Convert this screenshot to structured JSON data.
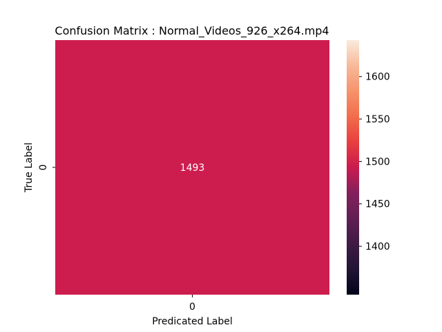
{
  "chart_data": {
    "type": "heatmap",
    "title": "Confusion Matrix : Normal_Videos_926_x264.mp4",
    "xlabel": "Predicated Label",
    "ylabel": "True Label",
    "x_categories": [
      "0"
    ],
    "y_categories": [
      "0"
    ],
    "values": [
      [
        1493
      ]
    ],
    "annotations": [
      [
        "1493"
      ]
    ],
    "cell_color": "#cd1d4e",
    "annotation_color": "#ffffff",
    "colorbar": {
      "range": [
        1343,
        1643
      ],
      "ticks": [
        1400,
        1450,
        1500,
        1550,
        1600
      ],
      "tick_labels": [
        "1400",
        "1450",
        "1500",
        "1550",
        "1600"
      ],
      "colormap": "rocket"
    },
    "grid": false,
    "legend": "none"
  }
}
